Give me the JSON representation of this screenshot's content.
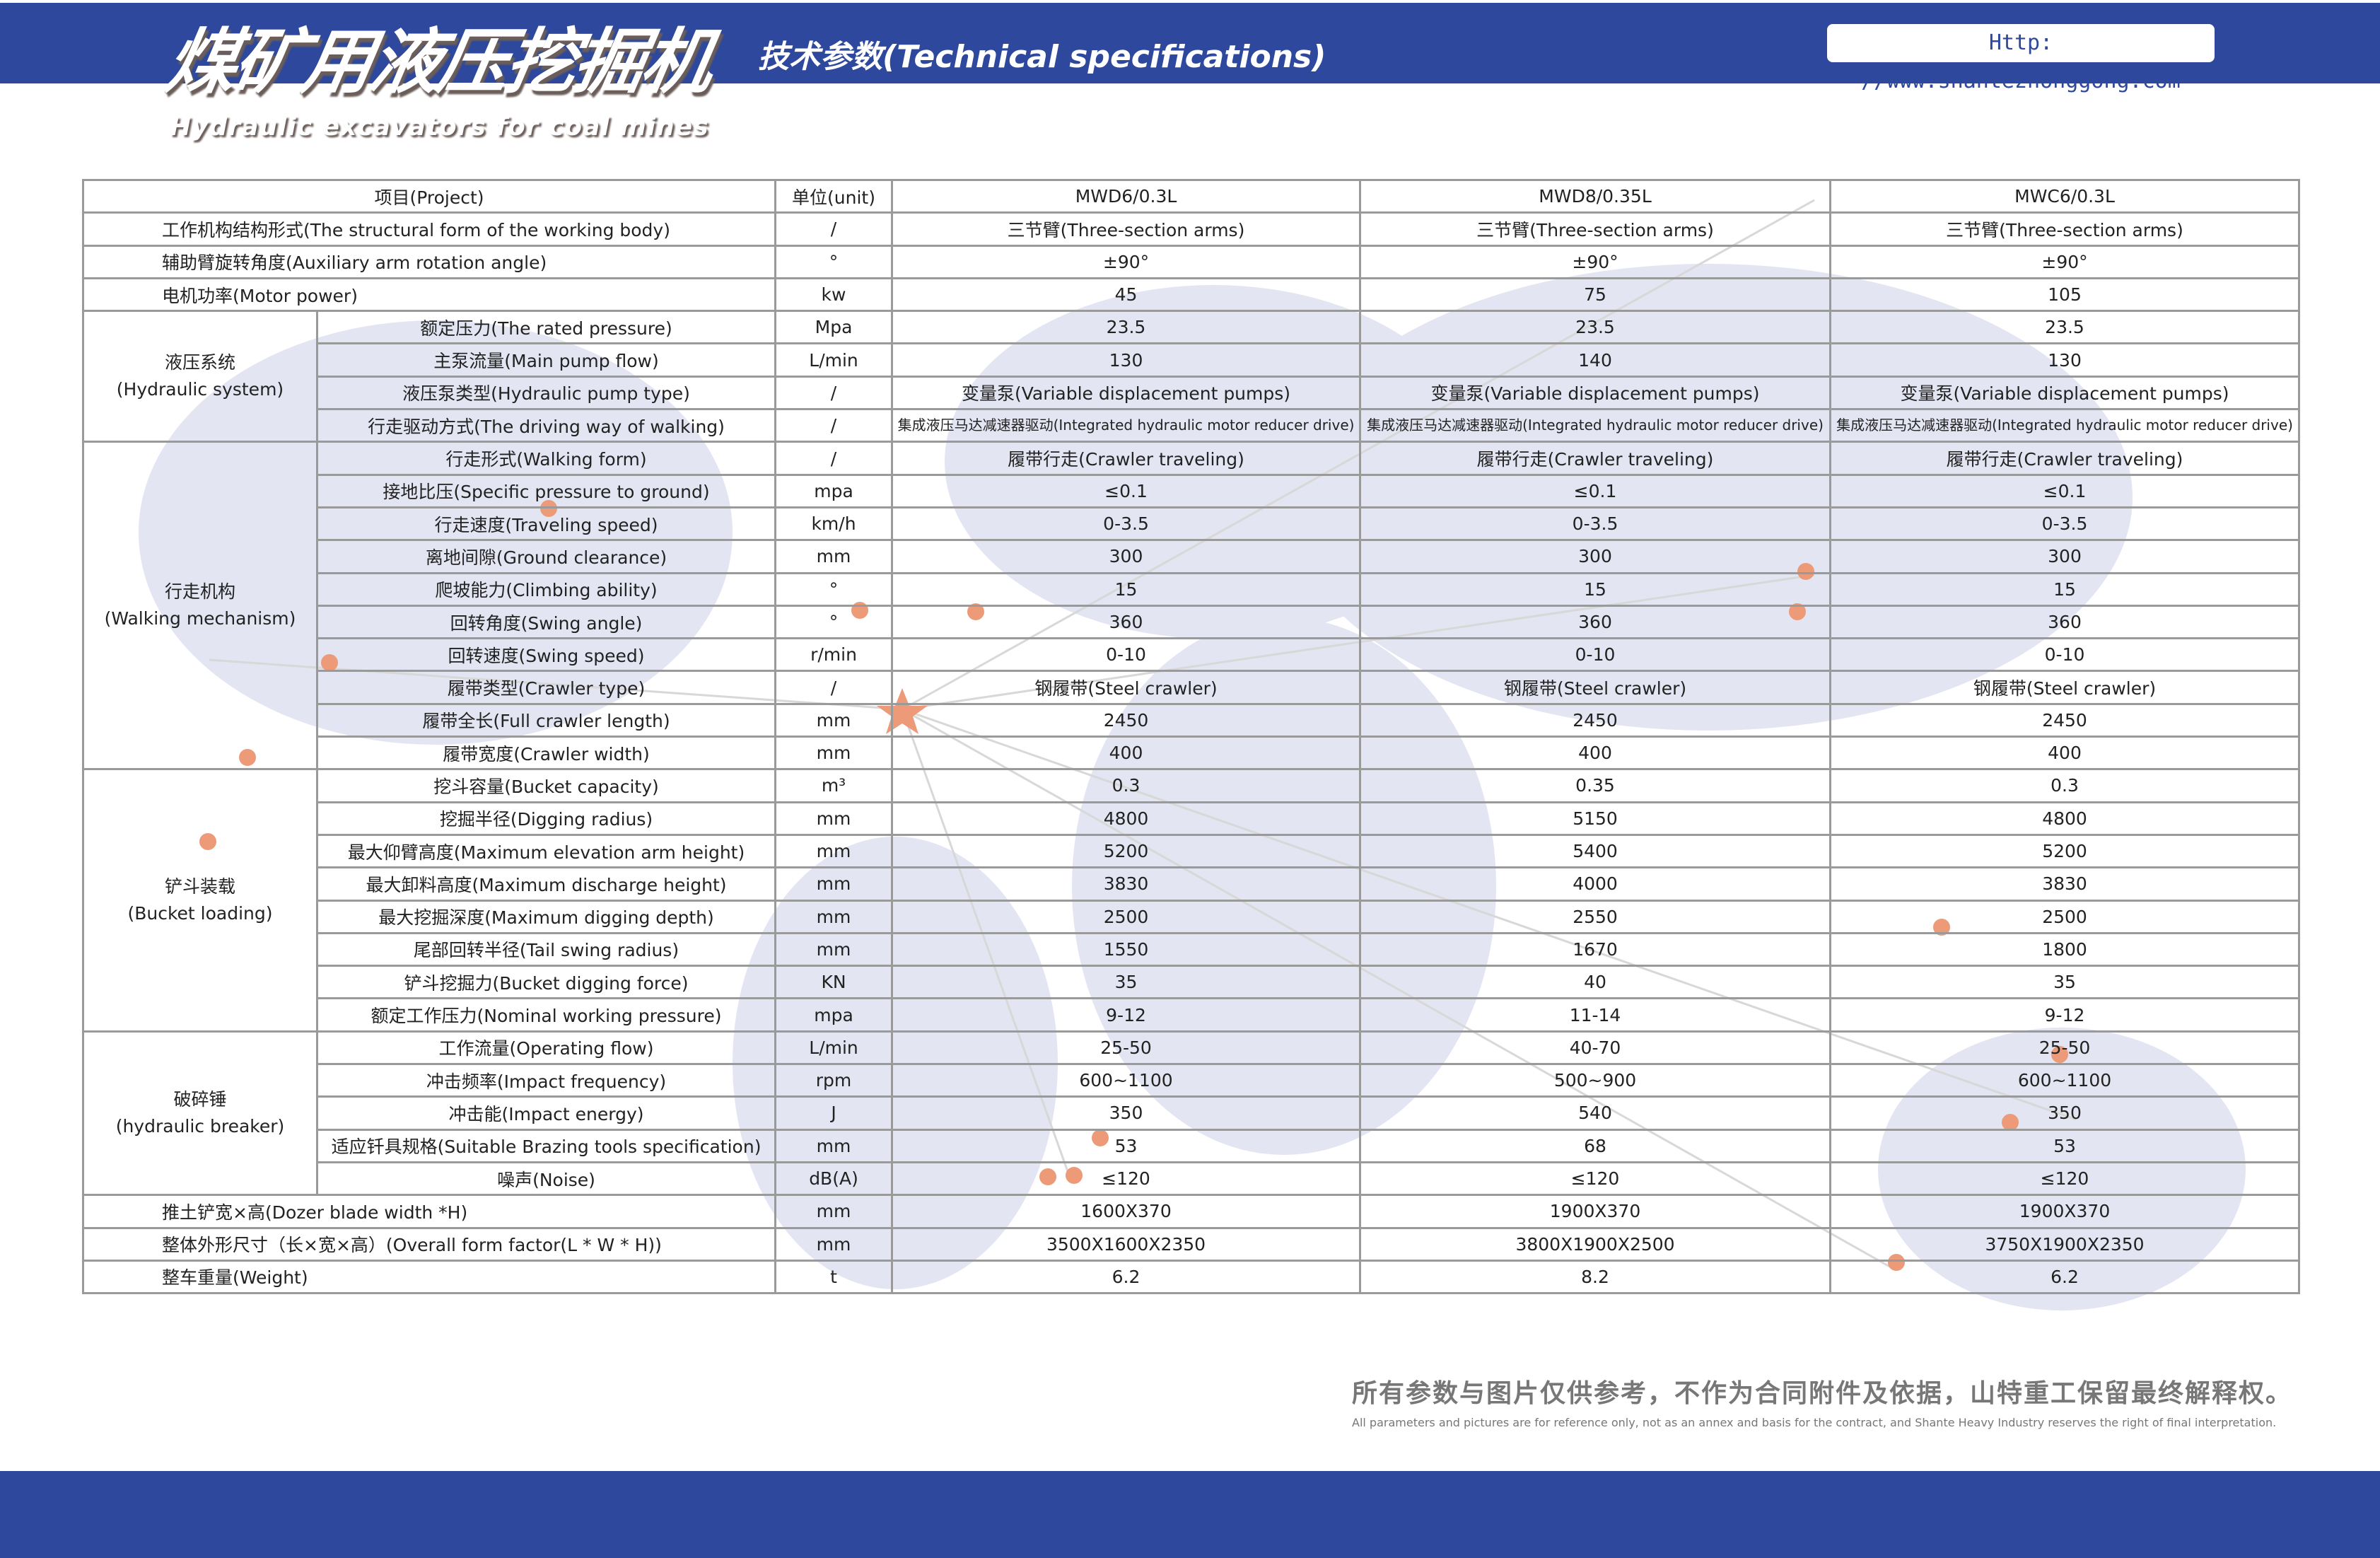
{
  "header": {
    "title_cn": "煤矿用液压挖掘机",
    "title_en": "Hydraulic excavators for coal mines",
    "subtitle": "技术参数(Technical specifications)",
    "url": "Http: //www.shantezhonggong.com"
  },
  "table": {
    "headers": [
      "项目(Project)",
      "单位(unit)",
      "MWD6/0.3L",
      "MWD8/0.35L",
      "MWC6/0.3L"
    ],
    "sections": [
      {
        "rows": [
          [
            "工作机构结构形式(The structural form of the working body)",
            "/",
            "三节臂(Three-section arms)",
            "三节臂(Three-section arms)",
            "三节臂(Three-section arms)"
          ],
          [
            "辅助臂旋转角度(Auxiliary arm rotation angle)",
            "°",
            "±90°",
            "±90°",
            "±90°"
          ],
          [
            "电机功率(Motor power)",
            "kw",
            "45",
            "75",
            "105"
          ]
        ]
      },
      {
        "group_cn": "液压系统",
        "group_en": "(Hydraulic system)",
        "rows": [
          [
            "额定压力(The rated pressure)",
            "Mpa",
            "23.5",
            "23.5",
            "23.5"
          ],
          [
            "主泵流量(Main pump flow)",
            "L/min",
            "130",
            "140",
            "130"
          ],
          [
            "液压泵类型(Hydraulic pump type)",
            "/",
            "变量泵(Variable displacement pumps)",
            "变量泵(Variable displacement pumps)",
            "变量泵(Variable displacement pumps)"
          ],
          [
            "行走驱动方式(The driving way of walking)",
            "/",
            "集成液压马达减速器驱动(Integrated hydraulic motor reducer drive)",
            "集成液压马达减速器驱动(Integrated hydraulic motor reducer drive)",
            "集成液压马达减速器驱动(Integrated hydraulic motor reducer drive)"
          ]
        ]
      },
      {
        "group_cn": "行走机构",
        "group_en": "(Walking mechanism)",
        "rows": [
          [
            "行走形式(Walking form)",
            "/",
            "履带行走(Crawler traveling)",
            "履带行走(Crawler traveling)",
            "履带行走(Crawler traveling)"
          ],
          [
            "接地比压(Specific pressure to ground)",
            "mpa",
            "≤0.1",
            "≤0.1",
            "≤0.1"
          ],
          [
            "行走速度(Traveling speed)",
            "km/h",
            "0-3.5",
            "0-3.5",
            "0-3.5"
          ],
          [
            "离地间隙(Ground clearance)",
            "mm",
            "300",
            "300",
            "300"
          ],
          [
            "爬坡能力(Climbing ability)",
            "°",
            "15",
            "15",
            "15"
          ],
          [
            "回转角度(Swing angle)",
            "°",
            "360",
            "360",
            "360"
          ],
          [
            "回转速度(Swing speed)",
            "r/min",
            "0-10",
            "0-10",
            "0-10"
          ],
          [
            "履带类型(Crawler type)",
            "/",
            "钢履带(Steel crawler)",
            "钢履带(Steel crawler)",
            "钢履带(Steel crawler)"
          ],
          [
            "履带全长(Full crawler length)",
            "mm",
            "2450",
            "2450",
            "2450"
          ],
          [
            "履带宽度(Crawler width)",
            "mm",
            "400",
            "400",
            "400"
          ]
        ]
      },
      {
        "group_cn": "铲斗装载",
        "group_en": "(Bucket loading)",
        "rows": [
          [
            "挖斗容量(Bucket capacity)",
            "m³",
            "0.3",
            "0.35",
            "0.3"
          ],
          [
            "挖掘半径(Digging radius)",
            "mm",
            "4800",
            "5150",
            "4800"
          ],
          [
            "最大仰臂高度(Maximum elevation arm height)",
            "mm",
            "5200",
            "5400",
            "5200"
          ],
          [
            "最大卸料高度(Maximum discharge height)",
            "mm",
            "3830",
            "4000",
            "3830"
          ],
          [
            "最大挖掘深度(Maximum digging depth)",
            "mm",
            "2500",
            "2550",
            "2500"
          ],
          [
            "尾部回转半径(Tail swing radius)",
            "mm",
            "1550",
            "1670",
            "1800"
          ],
          [
            "铲斗挖掘力(Bucket digging force)",
            "KN",
            "35",
            "40",
            "35"
          ],
          [
            "额定工作压力(Nominal working pressure)",
            "mpa",
            "9-12",
            "11-14",
            "9-12"
          ]
        ]
      },
      {
        "group_cn": "破碎锤",
        "group_en": "(hydraulic breaker)",
        "rows": [
          [
            "工作流量(Operating flow)",
            "L/min",
            "25-50",
            "40-70",
            "25-50"
          ],
          [
            "冲击频率(Impact frequency)",
            "rpm",
            "600~1100",
            "500~900",
            "600~1100"
          ],
          [
            "冲击能(Impact energy)",
            "J",
            "350",
            "540",
            "350"
          ],
          [
            "适应钎具规格(Suitable Brazing tools specification)",
            "mm",
            "53",
            "68",
            "53"
          ],
          [
            "噪声(Noise)",
            "dB(A)",
            "≤120",
            "≤120",
            "≤120"
          ]
        ]
      },
      {
        "rows": [
          [
            "推土铲宽×高(Dozer blade width *H)",
            "mm",
            "1600X370",
            "1900X370",
            "1900X370"
          ],
          [
            "整体外形尺寸（长×宽×高）(Overall form factor(L * W * H))",
            "mm",
            "3500X1600X2350",
            "3800X1900X2500",
            "3750X1900X2350"
          ],
          [
            "整车重量(Weight)",
            "t",
            "6.2",
            "8.2",
            "6.2"
          ]
        ]
      }
    ]
  },
  "watermark": "山特重工",
  "footer": {
    "disclaimer_cn": "所有参数与图片仅供参考，不作为合同附件及依据，山特重工保留最终解释权。",
    "disclaimer_en": "All parameters and pictures are for reference only, not as an annex and basis for the contract, and Shante Heavy Industry reserves the right of final interpretation."
  },
  "colors": {
    "brand_blue": "#2d489c",
    "map": "#e3e5f2",
    "dot": "#ec9a78"
  }
}
